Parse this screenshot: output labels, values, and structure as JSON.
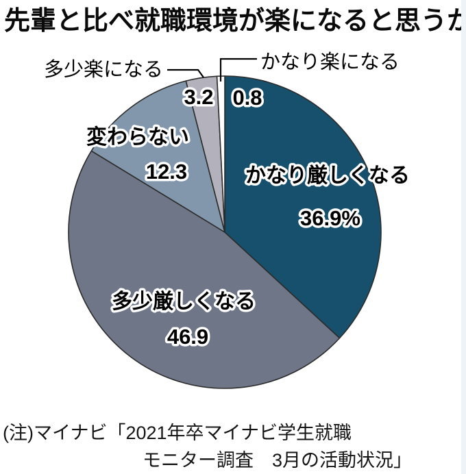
{
  "title": "先輩と比べ就職環境が楽になると思うか",
  "chart_data": {
    "type": "pie",
    "title": "先輩と比べ就職環境が楽になると思うか",
    "unit": "%",
    "start_angle_deg": 0,
    "direction": "clockwise",
    "legend_position": "none",
    "slices": [
      {
        "label": "かなり厳しくなる",
        "value": 36.9,
        "display_value": "36.9%",
        "color": "#16506c",
        "label_placement": "inside"
      },
      {
        "label": "多少厳しくなる",
        "value": 46.9,
        "display_value": "46.9",
        "color": "#6f7687",
        "label_placement": "inside"
      },
      {
        "label": "変わらない",
        "value": 12.3,
        "display_value": "12.3",
        "color": "#8297ab",
        "label_placement": "inside"
      },
      {
        "label": "多少楽になる",
        "value": 3.2,
        "display_value": "3.2",
        "color": "#b3b2bc",
        "label_placement": "callout"
      },
      {
        "label": "かなり楽になる",
        "value": 0.8,
        "display_value": "0.8",
        "color": "#ffffff",
        "label_placement": "callout"
      }
    ],
    "slice_border_color": "#2b2b2b"
  },
  "note": {
    "line1": "(注)マイナビ「2021年卒マイナビ学生就職",
    "line2": "モニター調査　3月の活動状況」"
  }
}
